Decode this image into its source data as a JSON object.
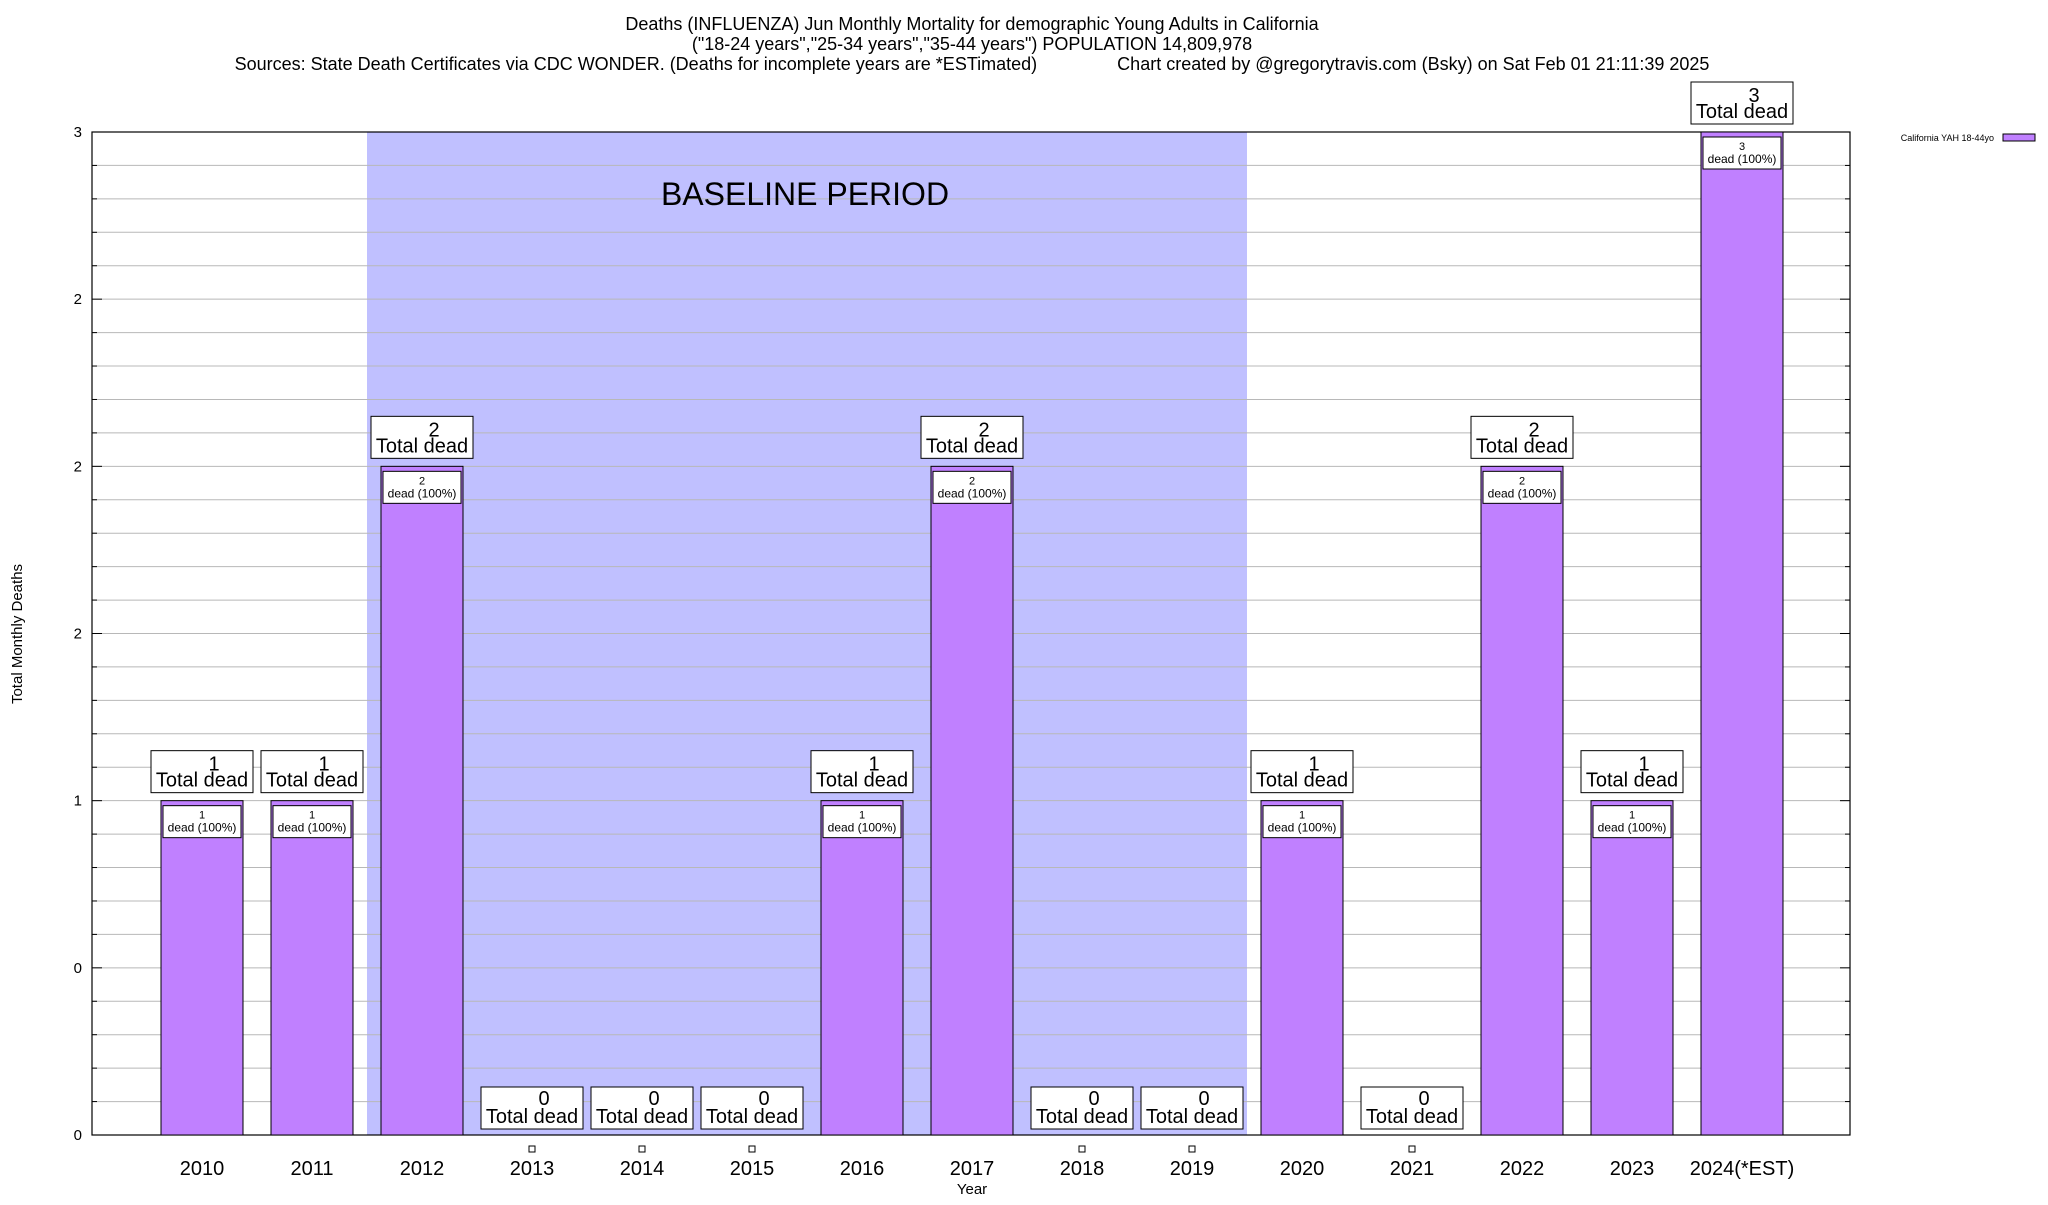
{
  "chart_data": {
    "type": "bar",
    "title_lines": [
      "Deaths (INFLUENZA) Jun Monthly Mortality for demographic Young Adults in California",
      "(\"18-24 years\",\"25-34 years\",\"35-44 years\") POPULATION 14,809,978",
      "Sources: State Death Certificates via CDC WONDER. (Deaths for incomplete years are *ESTimated)                Chart created by @gregorytravis.com (Bsky) on Sat Feb 01 21:11:39 2025"
    ],
    "xlabel": "Year",
    "ylabel": "Total Monthly Deaths",
    "categories": [
      "2010",
      "2011",
      "2012",
      "2013",
      "2014",
      "2015",
      "2016",
      "2017",
      "2018",
      "2019",
      "2020",
      "2021",
      "2022",
      "2023",
      "2024(*EST)"
    ],
    "series": [
      {
        "name": "California YAH 18-44yo",
        "color": "#c080ff",
        "values": [
          1,
          1,
          2,
          0,
          0,
          0,
          1,
          2,
          0,
          0,
          1,
          0,
          2,
          1,
          3
        ]
      }
    ],
    "total_label_text": "Total dead",
    "inner_label_text": "dead (100%)",
    "ylim": [
      0,
      3
    ],
    "ytick_values": [
      0,
      0.5,
      1,
      1.5,
      2,
      2.5,
      3
    ],
    "ytick_labels": [
      "0",
      "0",
      "1",
      "2",
      "2",
      "2",
      "3"
    ],
    "baseline_region": {
      "label": "BASELINE PERIOD",
      "start_category": "2012",
      "end_category": "2019",
      "color": "#c0c0ff"
    },
    "grid": true,
    "legend_position": "top-right"
  }
}
